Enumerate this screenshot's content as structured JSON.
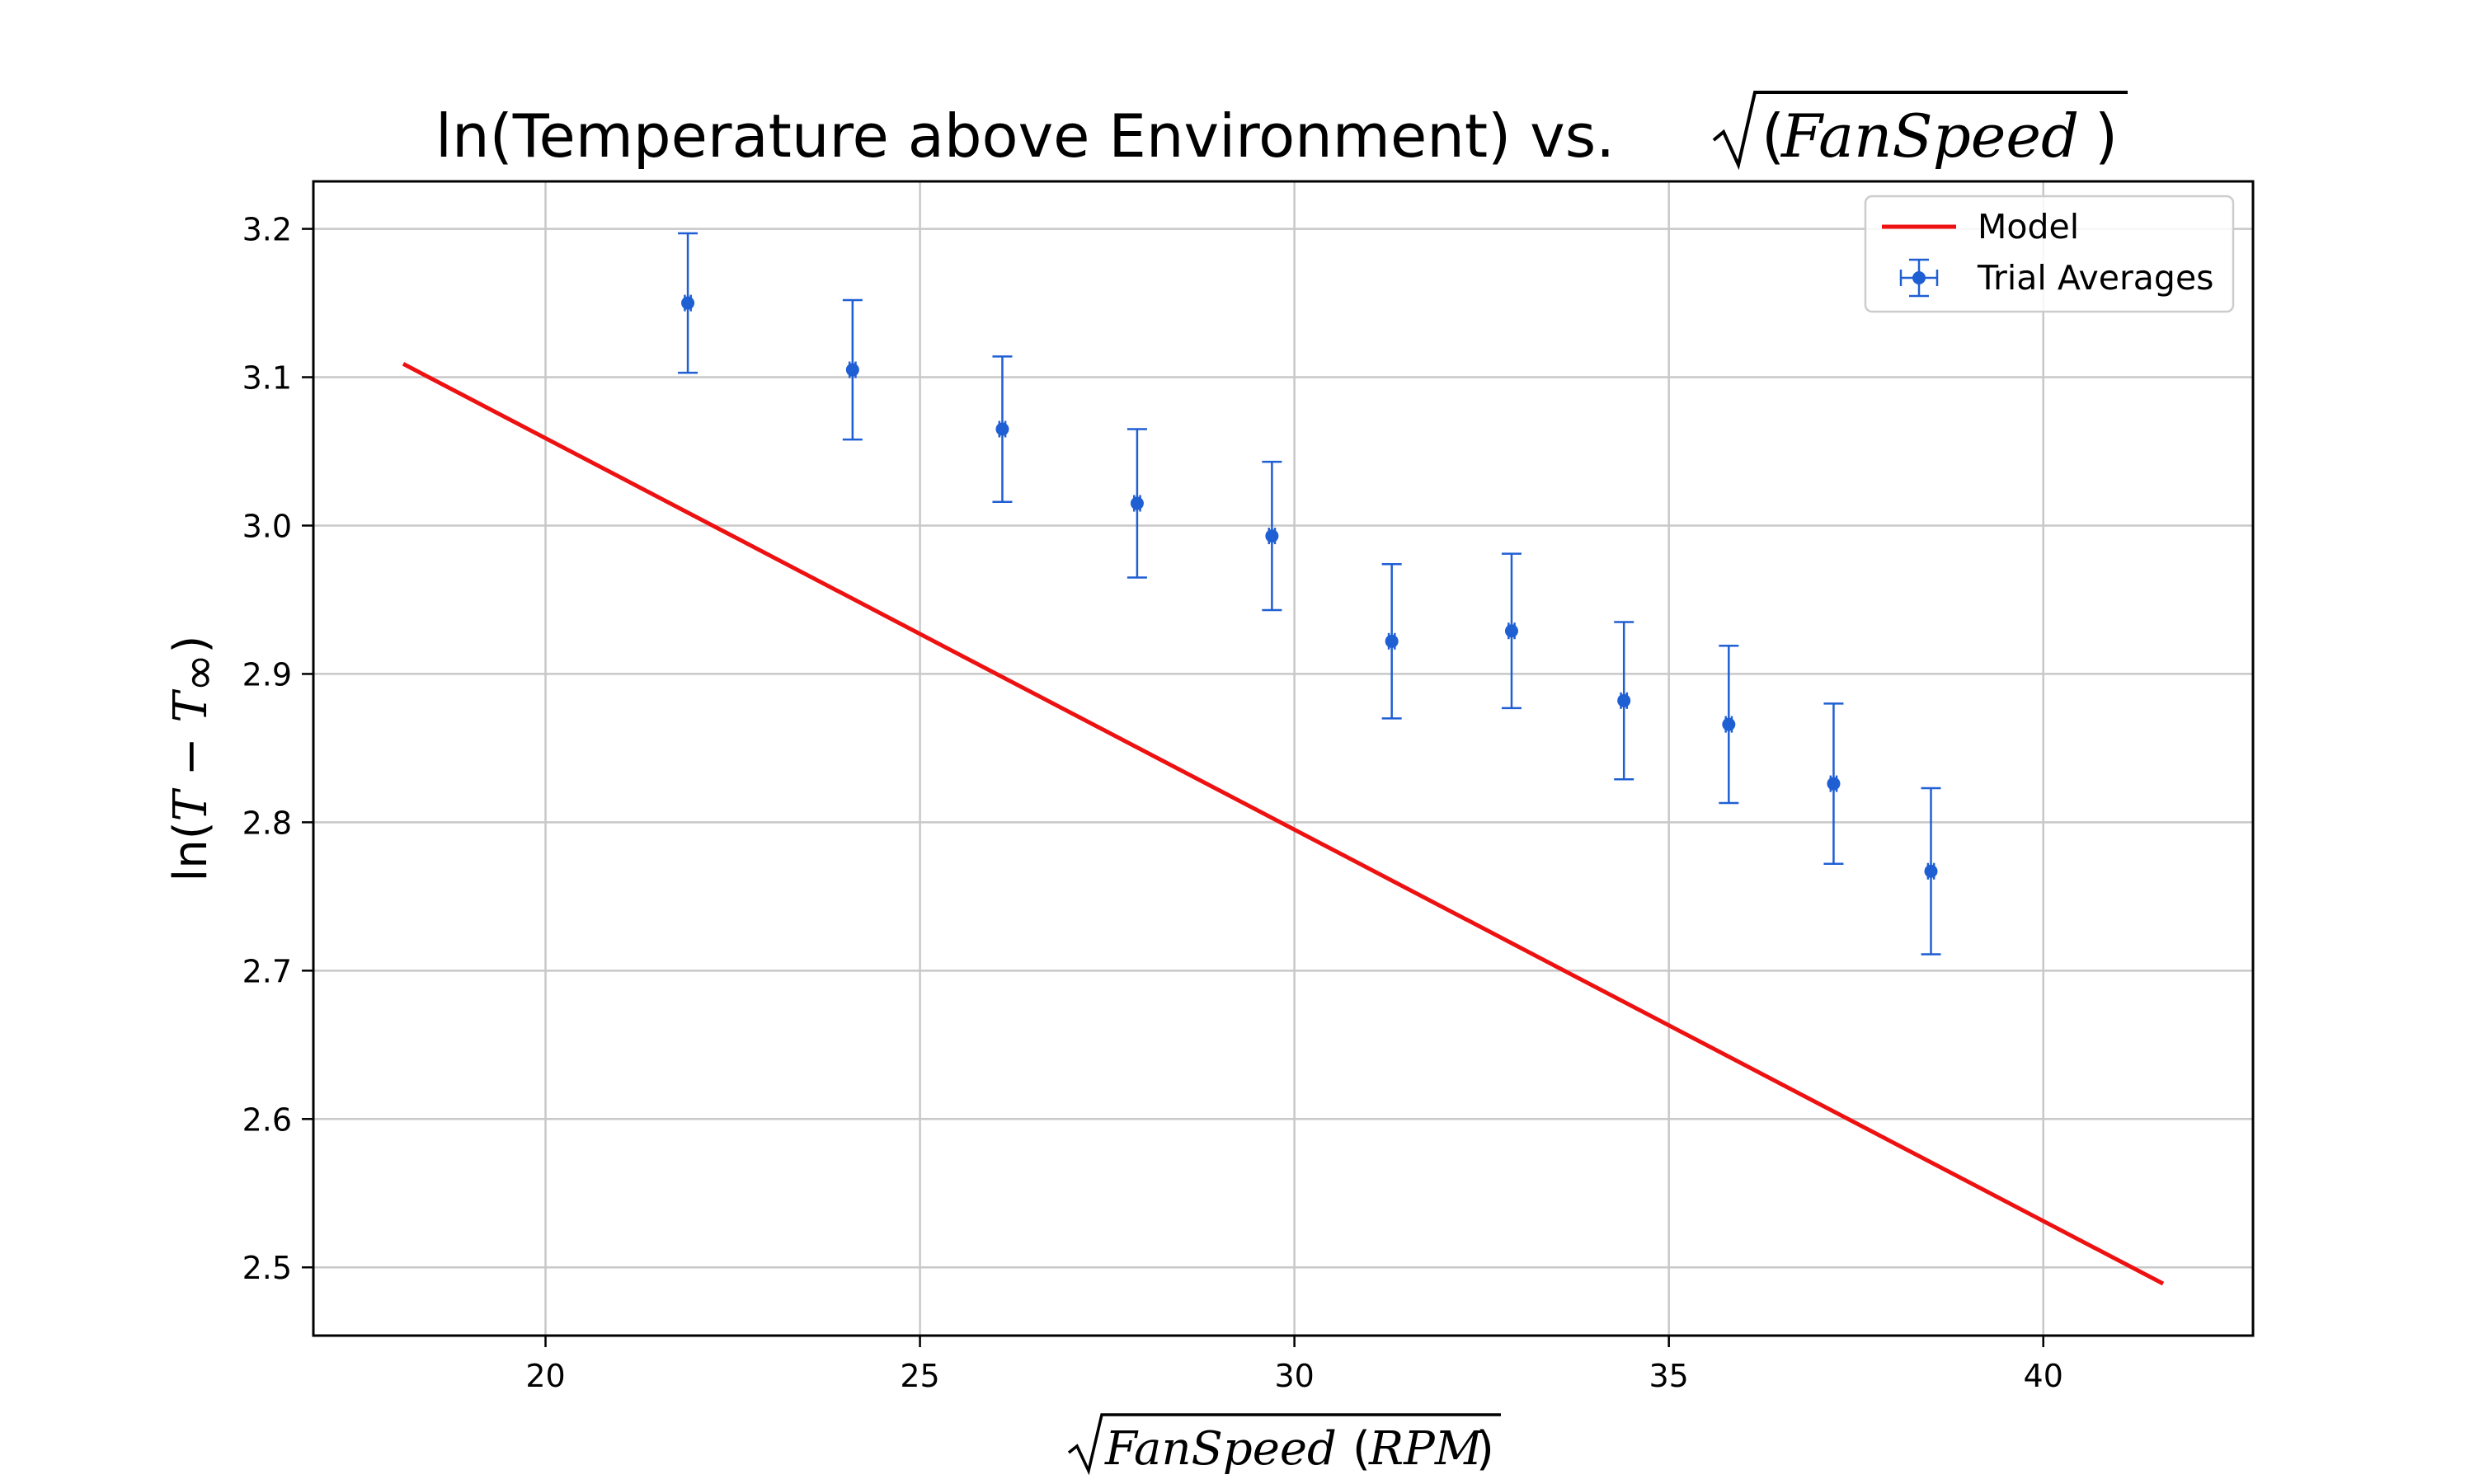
{
  "chart_data": {
    "type": "scatter",
    "title": {
      "prefix": "ln(Temperature above Environment) vs. ",
      "sqrt_arg_open": "(",
      "sqrt_arg_italic": "FanSpeed",
      "sqrt_arg_close": ")"
    },
    "xlabel": {
      "italic": "FanSpeed",
      "normal": "(",
      "italic2": "RPM",
      "close": ")"
    },
    "ylabel": {
      "prefix": "ln(",
      "T": "T",
      "minus": " − ",
      "T2": "T",
      "sub": "∞",
      "close": ")"
    },
    "xlim": [
      16.9,
      42.8
    ],
    "ylim": [
      2.454,
      3.232
    ],
    "xticks": [
      20,
      25,
      30,
      35,
      40
    ],
    "xtick_labels": [
      "20",
      "25",
      "30",
      "35",
      "40"
    ],
    "yticks": [
      2.5,
      2.6,
      2.7,
      2.8,
      2.9,
      3.0,
      3.1,
      3.2
    ],
    "ytick_labels": [
      "2.5",
      "2.6",
      "2.7",
      "2.8",
      "2.9",
      "3.0",
      "3.1",
      "3.2"
    ],
    "grid": true,
    "legend_position": "top-right",
    "series": [
      {
        "name": "Model",
        "kind": "line",
        "color": "#ee1111",
        "x": [
          18.1,
          41.6
        ],
        "y": [
          3.109,
          2.489
        ]
      },
      {
        "name": "Trial Averages",
        "kind": "errorbar",
        "color": "#1f5fd4",
        "x": [
          21.9,
          24.1,
          26.1,
          27.9,
          29.7,
          31.3,
          32.9,
          34.4,
          35.8,
          37.2,
          38.5
        ],
        "y": [
          3.15,
          3.105,
          3.065,
          3.015,
          2.993,
          2.922,
          2.929,
          2.882,
          2.866,
          2.826,
          2.767
        ],
        "yerr": [
          0.047,
          0.047,
          0.049,
          0.05,
          0.05,
          0.052,
          0.052,
          0.053,
          0.053,
          0.054,
          0.056
        ],
        "xerr": [
          0.04,
          0.04,
          0.04,
          0.04,
          0.04,
          0.04,
          0.04,
          0.04,
          0.04,
          0.04,
          0.04
        ]
      }
    ]
  }
}
